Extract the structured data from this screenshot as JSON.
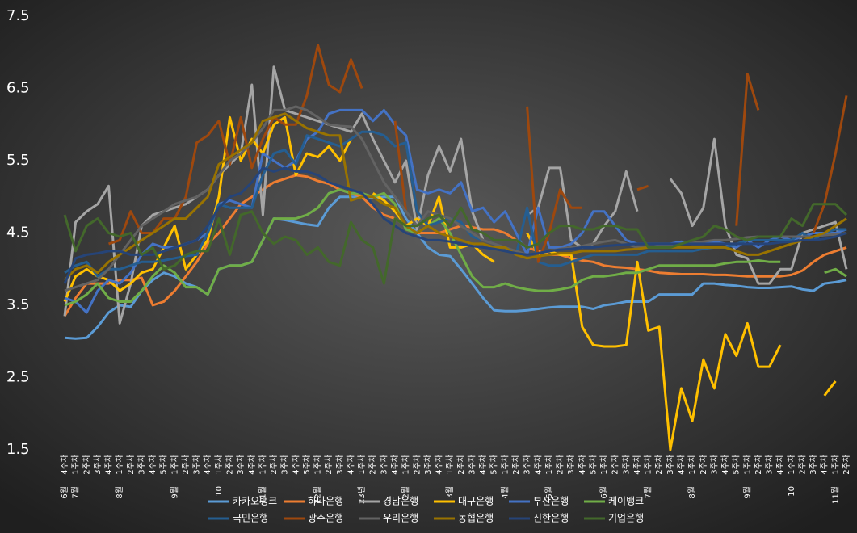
{
  "chart_data": {
    "type": "line",
    "categories": [
      "4주차",
      "1주차",
      "2주차",
      "3주차",
      "4주차",
      "1주차",
      "2주차",
      "3주차",
      "4주차",
      "5주차",
      "1주차",
      "2주차",
      "3주차",
      "4주차",
      "1주차",
      "2주차",
      "3주차",
      "4주차",
      "1주차",
      "2주차",
      "3주차",
      "4주차",
      "5주차",
      "1주차",
      "2주차",
      "3주차",
      "4주차",
      "1주차",
      "2주차",
      "3주차",
      "4주차",
      "1주차",
      "2주차",
      "3주차",
      "4주차",
      "1주차",
      "2주차",
      "3주차",
      "4주차",
      "5주차",
      "1주차",
      "2주차",
      "3주차",
      "4주차",
      "1주차",
      "2주차",
      "3주차",
      "4주차",
      "5주차",
      "1주차",
      "2주차",
      "3주차",
      "4주차",
      "1주차",
      "2주차",
      "3주차",
      "4주차",
      "1주차",
      "2주차",
      "3주차",
      "4주차",
      "5주차",
      "1주차",
      "2주차",
      "3주차",
      "4주차",
      "1주차",
      "2주차",
      "3주차",
      "4주차",
      "1주차",
      "2주차"
    ],
    "month_labels": [
      "6월",
      "7월",
      null,
      null,
      null,
      "8월",
      null,
      null,
      null,
      null,
      "9월",
      null,
      null,
      null,
      "10",
      null,
      null,
      null,
      "11월",
      null,
      null,
      null,
      null,
      "12월",
      null,
      null,
      null,
      "23년",
      null,
      null,
      null,
      "2월",
      null,
      null,
      null,
      "3월",
      null,
      null,
      null,
      null,
      "4월",
      null,
      null,
      null,
      "5월",
      null,
      null,
      null,
      null,
      "6월",
      null,
      null,
      null,
      "7월",
      null,
      null,
      null,
      "8월",
      null,
      null,
      null,
      null,
      "9월",
      null,
      null,
      null,
      "10",
      null,
      null,
      null,
      "11월",
      null
    ],
    "ylim": [
      1.5,
      7.5
    ],
    "yticks": [
      1.5,
      2.5,
      3.5,
      4.5,
      5.5,
      6.5,
      7.5
    ],
    "grid": false,
    "legend": "bottom",
    "series": [
      {
        "name": "카카오뱅크",
        "color": "#5b9bd5",
        "values": [
          3.05,
          3.04,
          3.05,
          3.2,
          3.4,
          3.5,
          3.48,
          3.7,
          3.85,
          3.95,
          3.9,
          3.8,
          3.75,
          3.65,
          4.0,
          4.05,
          4.05,
          4.1,
          4.4,
          4.7,
          4.68,
          4.65,
          4.62,
          4.6,
          4.85,
          5.0,
          5.0,
          5.0,
          4.98,
          5.0,
          5.0,
          4.7,
          4.5,
          4.3,
          4.2,
          4.18,
          4.0,
          3.8,
          3.6,
          3.43,
          3.42,
          3.42,
          3.43,
          3.45,
          3.47,
          3.48,
          3.48,
          3.48,
          3.45,
          3.5,
          3.52,
          3.55,
          3.55,
          3.55,
          3.65,
          3.65,
          3.65,
          3.65,
          3.8,
          3.8,
          3.78,
          3.77,
          3.75,
          3.74,
          3.74,
          3.75,
          3.76,
          3.72,
          3.7,
          3.8,
          3.82,
          3.85
        ]
      },
      {
        "name": "하나은행",
        "color": "#ed7d31",
        "values": [
          3.35,
          3.6,
          3.8,
          3.8,
          3.8,
          3.85,
          3.85,
          3.88,
          3.5,
          3.55,
          3.7,
          3.9,
          4.1,
          4.35,
          4.5,
          4.7,
          4.9,
          5.0,
          5.1,
          5.2,
          5.25,
          5.3,
          5.28,
          5.22,
          5.18,
          5.1,
          5.05,
          5.0,
          4.85,
          4.75,
          4.7,
          4.6,
          4.5,
          4.5,
          4.5,
          4.55,
          4.6,
          4.58,
          4.55,
          4.55,
          4.5,
          4.4,
          4.3,
          4.25,
          4.2,
          4.2,
          4.15,
          4.12,
          4.1,
          4.05,
          4.03,
          4.02,
          4.0,
          3.98,
          3.95,
          3.94,
          3.93,
          3.93,
          3.93,
          3.92,
          3.92,
          3.91,
          3.9,
          3.9,
          3.9,
          3.9,
          3.92,
          3.98,
          4.1,
          4.2,
          4.25,
          4.3
        ]
      },
      {
        "name": "경남은행",
        "color": "#a5a5a5",
        "values": [
          3.35,
          4.65,
          4.8,
          4.9,
          5.15,
          3.25,
          3.8,
          4.6,
          4.75,
          4.8,
          4.85,
          4.9,
          5.0,
          5.1,
          5.3,
          5.45,
          5.6,
          6.55,
          4.75,
          6.8,
          6.2,
          6.15,
          6.1,
          6.05,
          6.0,
          5.95,
          5.9,
          6.15,
          5.8,
          5.5,
          5.2,
          5.5,
          4.55,
          5.3,
          5.7,
          5.35,
          5.8,
          4.8,
          4.4,
          null,
          null,
          null,
          4.75,
          4.85,
          5.4,
          5.4,
          4.4,
          4.3,
          4.35,
          4.6,
          4.8,
          5.35,
          4.8,
          null,
          null,
          5.25,
          5.05,
          4.6,
          4.85,
          5.8,
          4.6,
          4.2,
          4.15,
          3.8,
          3.8,
          4.0,
          4.0,
          4.5,
          4.55,
          4.6,
          4.65,
          4.0
        ]
      },
      {
        "name": "대구은행",
        "color": "#ffc000",
        "values": [
          3.55,
          3.9,
          4.0,
          3.9,
          3.85,
          3.7,
          3.8,
          3.95,
          4.0,
          4.3,
          4.6,
          4.0,
          4.2,
          4.4,
          5.0,
          6.1,
          5.5,
          5.8,
          5.6,
          6.0,
          6.1,
          5.3,
          5.6,
          5.55,
          5.7,
          5.5,
          5.8,
          null,
          5.05,
          4.95,
          4.8,
          4.6,
          4.7,
          4.6,
          5.0,
          4.3,
          4.3,
          4.35,
          4.2,
          4.1,
          null,
          null,
          4.5,
          4.2,
          4.25,
          4.2,
          4.2,
          3.2,
          2.95,
          2.93,
          2.93,
          2.95,
          4.1,
          3.15,
          3.2,
          1.5,
          2.35,
          1.9,
          2.75,
          2.35,
          3.1,
          2.8,
          3.25,
          2.65,
          2.65,
          2.95,
          null,
          null,
          null,
          2.25,
          2.45,
          null
        ]
      },
      {
        "name": "부산은행",
        "color": "#4472c4",
        "values": [
          3.6,
          3.55,
          3.4,
          3.7,
          3.85,
          3.8,
          3.95,
          4.2,
          4.35,
          4.3,
          4.3,
          4.35,
          4.4,
          4.5,
          4.9,
          4.95,
          4.9,
          4.85,
          5.6,
          5.5,
          5.4,
          5.5,
          5.8,
          5.9,
          6.15,
          6.2,
          6.2,
          6.2,
          6.05,
          6.2,
          6.0,
          5.85,
          5.1,
          5.05,
          5.1,
          5.05,
          5.2,
          4.8,
          4.85,
          4.65,
          4.8,
          4.5,
          4.2,
          4.85,
          4.3,
          4.3,
          4.35,
          4.5,
          4.8,
          4.8,
          4.6,
          4.4,
          4.35,
          4.35,
          4.35,
          4.35,
          4.38,
          4.35,
          4.35,
          4.38,
          4.35,
          4.3,
          4.4,
          4.3,
          4.4,
          4.45,
          4.4,
          4.45,
          4.5,
          4.5,
          4.5,
          4.55
        ]
      },
      {
        "name": "케이뱅크",
        "color": "#70ad47",
        "values": [
          3.5,
          3.55,
          3.65,
          3.8,
          3.6,
          3.55,
          3.55,
          3.7,
          3.9,
          4.05,
          3.95,
          3.75,
          3.75,
          3.65,
          4.0,
          4.05,
          4.05,
          4.1,
          4.4,
          4.7,
          4.7,
          4.7,
          4.75,
          4.85,
          5.05,
          5.1,
          5.05,
          5.05,
          5.0,
          5.05,
          4.9,
          4.55,
          4.5,
          4.6,
          4.7,
          4.5,
          4.2,
          3.9,
          3.75,
          3.75,
          3.8,
          3.75,
          3.72,
          3.7,
          3.7,
          3.72,
          3.75,
          3.85,
          3.9,
          3.9,
          3.92,
          3.95,
          3.95,
          4.0,
          4.05,
          4.05,
          4.05,
          4.05,
          4.05,
          4.05,
          4.08,
          4.1,
          4.1,
          4.12,
          4.1,
          4.1,
          null,
          null,
          null,
          3.95,
          4.0,
          3.9
        ]
      },
      {
        "name": "국민은행",
        "color": "#255e91",
        "values": [
          3.95,
          4.05,
          4.1,
          3.9,
          4.0,
          4.0,
          4.05,
          4.1,
          4.1,
          4.12,
          4.15,
          4.18,
          4.2,
          4.5,
          4.9,
          4.85,
          4.85,
          4.85,
          5.3,
          5.6,
          5.65,
          5.45,
          5.85,
          5.8,
          5.75,
          5.7,
          5.8,
          5.9,
          5.9,
          5.85,
          5.7,
          5.75,
          4.8,
          4.6,
          4.65,
          4.7,
          4.65,
          4.45,
          4.4,
          4.35,
          4.3,
          4.2,
          4.85,
          4.1,
          4.05,
          4.05,
          4.1,
          4.15,
          4.2,
          4.2,
          4.2,
          4.2,
          4.2,
          4.25,
          4.25,
          4.25,
          4.25,
          4.25,
          4.28,
          4.3,
          4.3,
          4.35,
          4.4,
          4.4,
          4.4,
          4.4,
          4.4,
          4.5,
          4.4,
          4.5,
          4.55,
          4.55
        ]
      },
      {
        "name": "광주은행",
        "color": "#9e480e",
        "values": [
          null,
          null,
          null,
          null,
          4.35,
          4.4,
          4.8,
          4.5,
          4.5,
          4.7,
          4.7,
          5.0,
          5.75,
          5.85,
          6.05,
          5.45,
          6.1,
          5.4,
          5.8,
          6.1,
          6.0,
          6.0,
          6.4,
          7.1,
          6.55,
          6.45,
          6.9,
          6.5,
          null,
          null,
          6.05,
          4.8,
          null,
          null,
          null,
          null,
          null,
          null,
          null,
          null,
          null,
          null,
          6.25,
          4.1,
          4.5,
          5.1,
          4.85,
          4.85,
          null,
          null,
          null,
          null,
          5.1,
          5.15,
          null,
          null,
          null,
          null,
          null,
          null,
          null,
          4.6,
          6.7,
          6.2,
          null,
          null,
          null,
          null,
          4.5,
          4.9,
          5.6,
          6.4
        ]
      },
      {
        "name": "우리은행",
        "color": "#636363",
        "values": [
          3.7,
          3.75,
          3.8,
          3.85,
          4.0,
          4.2,
          4.4,
          4.6,
          4.7,
          4.8,
          4.9,
          4.95,
          5.0,
          5.1,
          5.3,
          5.5,
          5.6,
          5.75,
          5.95,
          6.2,
          6.2,
          6.25,
          6.2,
          6.1,
          6.0,
          5.98,
          5.97,
          5.8,
          5.5,
          5.2,
          5.0,
          4.8,
          4.6,
          4.8,
          4.75,
          4.7,
          4.6,
          4.5,
          4.4,
          4.35,
          4.3,
          4.25,
          4.2,
          4.22,
          4.25,
          4.28,
          4.3,
          4.32,
          4.35,
          4.38,
          4.4,
          4.35,
          4.3,
          4.3,
          4.32,
          4.34,
          4.35,
          4.36,
          4.38,
          4.4,
          4.4,
          4.42,
          4.44,
          4.45,
          4.45,
          4.45,
          4.45,
          4.45,
          4.45,
          4.47,
          4.48,
          4.5
        ]
      },
      {
        "name": "농협은행",
        "color": "#997300",
        "values": [
          3.85,
          4.0,
          4.05,
          3.95,
          4.1,
          4.2,
          4.3,
          4.4,
          4.5,
          4.6,
          4.7,
          4.7,
          4.85,
          5.0,
          5.45,
          5.55,
          5.65,
          5.75,
          6.05,
          6.1,
          6.15,
          6.05,
          5.95,
          5.9,
          5.85,
          5.85,
          4.95,
          5.0,
          5.0,
          4.9,
          4.85,
          4.6,
          4.5,
          4.6,
          4.5,
          4.45,
          4.4,
          4.35,
          4.35,
          4.3,
          4.3,
          4.2,
          4.15,
          4.18,
          4.2,
          4.22,
          4.22,
          4.25,
          4.25,
          4.25,
          4.25,
          4.27,
          4.28,
          4.3,
          4.3,
          4.3,
          4.3,
          4.3,
          4.3,
          4.3,
          4.3,
          4.25,
          4.2,
          4.2,
          4.25,
          4.3,
          4.35,
          4.4,
          4.45,
          4.5,
          4.6,
          4.7
        ]
      },
      {
        "name": "신한은행",
        "color": "#264478",
        "values": [
          3.8,
          4.15,
          4.2,
          4.22,
          4.25,
          4.25,
          4.2,
          4.2,
          4.2,
          4.25,
          4.3,
          4.35,
          4.4,
          4.6,
          4.85,
          5.0,
          5.05,
          5.2,
          5.4,
          5.35,
          5.4,
          5.35,
          5.35,
          5.3,
          5.2,
          5.15,
          5.1,
          5.05,
          4.9,
          4.7,
          4.6,
          4.5,
          4.45,
          4.4,
          4.4,
          4.38,
          4.35,
          4.32,
          4.3,
          4.28,
          4.25,
          4.22,
          4.2,
          4.22,
          4.25,
          4.27,
          4.28,
          4.3,
          4.3,
          4.32,
          4.33,
          4.34,
          4.35,
          4.35,
          4.35,
          4.35,
          4.35,
          4.35,
          4.35,
          4.35,
          4.35,
          4.35,
          4.35,
          4.35,
          4.35,
          4.37,
          4.38,
          4.4,
          4.4,
          4.42,
          4.45,
          4.5
        ]
      },
      {
        "name": "기업은행",
        "color": "#43682b",
        "values": [
          4.75,
          4.25,
          4.6,
          4.7,
          4.5,
          4.45,
          4.5,
          4.2,
          4.3,
          4.0,
          4.05,
          4.2,
          4.25,
          4.25,
          4.7,
          4.2,
          4.75,
          4.8,
          4.5,
          4.35,
          4.45,
          4.4,
          4.2,
          4.3,
          4.1,
          4.05,
          4.65,
          4.4,
          4.3,
          3.8,
          4.7,
          4.6,
          4.6,
          4.7,
          4.75,
          4.6,
          4.85,
          4.55,
          4.5,
          4.4,
          4.4,
          4.4,
          4.3,
          4.35,
          4.5,
          4.6,
          4.6,
          4.55,
          4.55,
          4.6,
          4.6,
          4.55,
          4.55,
          4.3,
          4.3,
          4.3,
          4.35,
          4.4,
          4.45,
          4.6,
          4.55,
          4.45,
          4.4,
          4.45,
          4.45,
          4.45,
          4.7,
          4.6,
          4.9,
          4.9,
          4.9,
          4.75
        ]
      }
    ]
  }
}
